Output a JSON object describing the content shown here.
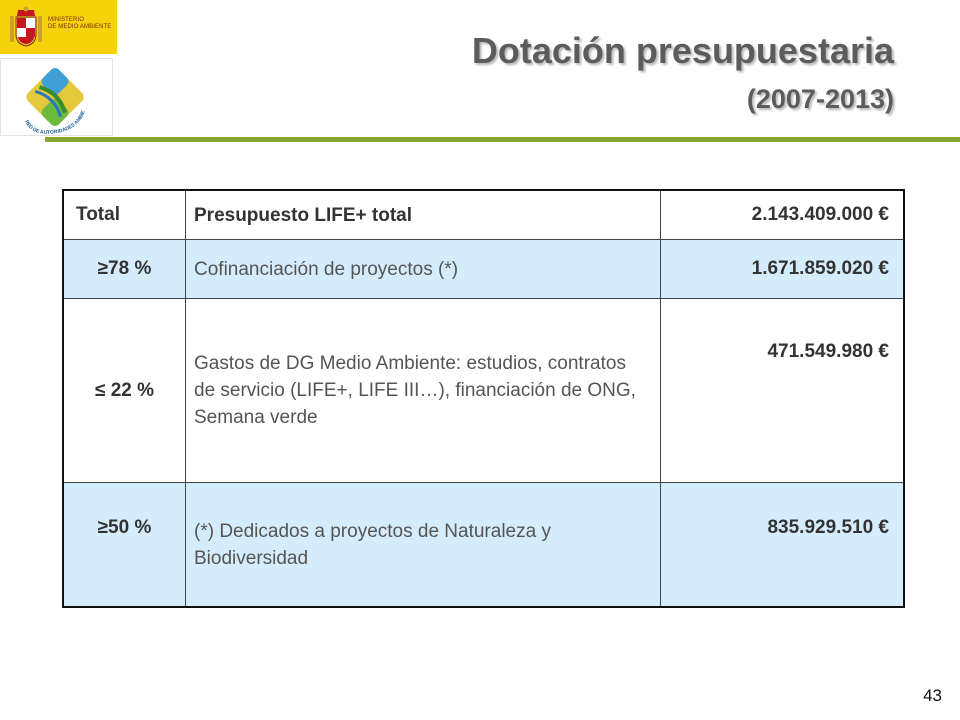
{
  "logos": {
    "ministry": {
      "lines": [
        "MINISTERIO",
        "DE MEDIO AMBIENTE"
      ],
      "background": "#f5d20a",
      "icon": "coat-of-arms-icon"
    },
    "network": {
      "arc_text": "RED DE AUTORIDADES AMBIENTALES",
      "icon": "network-logo-icon"
    }
  },
  "title": {
    "main": "Dotación presupuestaria",
    "sub": "(2007-2013)"
  },
  "colors": {
    "accent_rule": "#87a631",
    "row_highlight": "#d4ecfb",
    "title_text": "#5c5c5c"
  },
  "table": {
    "rows": [
      {
        "pct": "Total",
        "desc": "Presupuesto LIFE+ total",
        "amount": "2.143.409.000 €"
      },
      {
        "pct": "≥78 %",
        "desc": "Cofinanciación de proyectos (*)",
        "amount": "1.671.859.020 €"
      },
      {
        "pct": "≤ 22 %",
        "desc": "Gastos de DG Medio Ambiente: estudios, contratos de servicio (LIFE+, LIFE III…), financiación de ONG, Semana verde",
        "amount": "471.549.980 €"
      },
      {
        "pct": "≥50 %",
        "desc": "(*) Dedicados a proyectos de Naturaleza  y Biodiversidad",
        "amount": "835.929.510 €"
      }
    ]
  },
  "page_number": "43"
}
